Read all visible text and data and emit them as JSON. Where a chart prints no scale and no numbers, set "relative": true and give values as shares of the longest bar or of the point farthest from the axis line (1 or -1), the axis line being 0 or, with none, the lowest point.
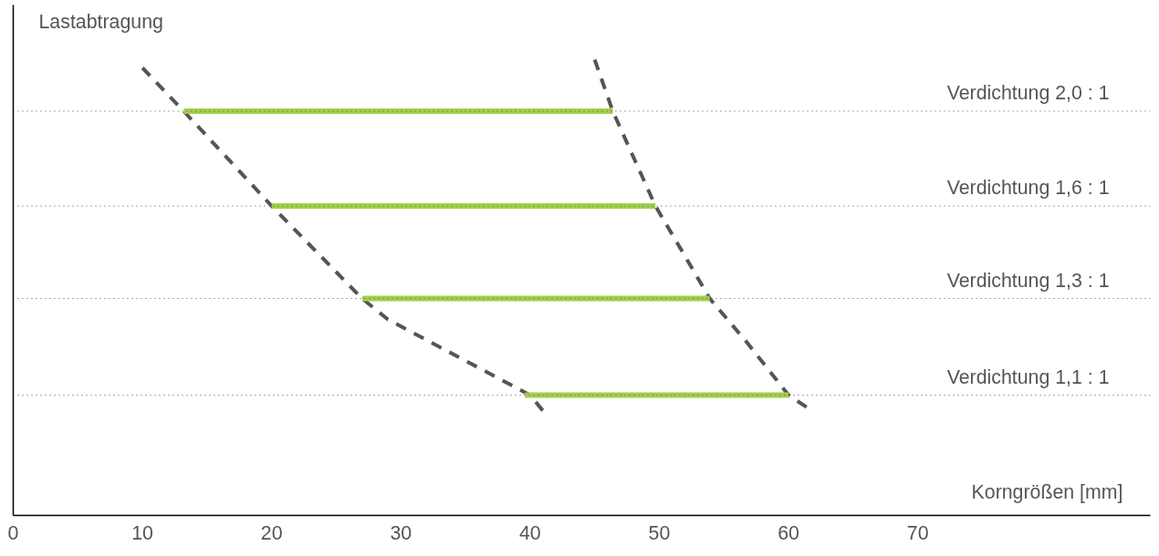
{
  "chart_data": {
    "type": "line",
    "relative": true,
    "xlabel": "Korngrößen [mm]",
    "ylabel": "Lastabtragung",
    "xlim": [
      0,
      88
    ],
    "xticks": [
      0,
      10,
      20,
      30,
      40,
      50,
      60,
      70
    ],
    "tick_labels": "x",
    "marker": "none",
    "series": [
      {
        "color": "#555555",
        "line_style": "dashed",
        "x": [
          10.0,
          13.2,
          20,
          27,
          29,
          40,
          41.1
        ],
        "values": [
          0.982,
          0.887,
          0.679,
          0.476,
          0.43,
          0.264,
          0.226
        ]
      },
      {
        "color": "#555555",
        "line_style": "dashed",
        "x": [
          45.0,
          46.4,
          49.7,
          52.4,
          53.9,
          56.8,
          60.0,
          61.8
        ],
        "values": [
          1.0,
          0.887,
          0.679,
          0.549,
          0.476,
          0.379,
          0.264,
          0.23
        ]
      },
      {
        "name": "Verdichtung 2,0 : 1",
        "color": "#a2cf4b",
        "line_style": "solid",
        "x": [
          13.2,
          46.4
        ],
        "values": [
          0.887,
          0.887
        ]
      },
      {
        "name": "Verdichtung 1,6 : 1",
        "color": "#a2cf4b",
        "line_style": "solid",
        "x": [
          20,
          49.7
        ],
        "values": [
          0.679,
          0.679
        ]
      },
      {
        "name": "Verdichtung 1,3 : 1",
        "color": "#a2cf4b",
        "line_style": "solid",
        "x": [
          27,
          53.9
        ],
        "values": [
          0.476,
          0.476
        ]
      },
      {
        "name": "Verdichtung 1,1 : 1",
        "color": "#a2cf4b",
        "line_style": "solid",
        "x": [
          39.6,
          60.0
        ],
        "values": [
          0.264,
          0.264
        ]
      }
    ],
    "ref_lines": [
      {
        "axis": "y",
        "value": 0.887,
        "color": "#555555",
        "line_style": "dotted"
      },
      {
        "axis": "y",
        "value": 0.679,
        "color": "#555555",
        "line_style": "dotted"
      },
      {
        "axis": "y",
        "value": 0.476,
        "color": "#555555",
        "line_style": "dotted"
      },
      {
        "axis": "y",
        "value": 0.264,
        "color": "#555555",
        "line_style": "dotted"
      }
    ]
  }
}
